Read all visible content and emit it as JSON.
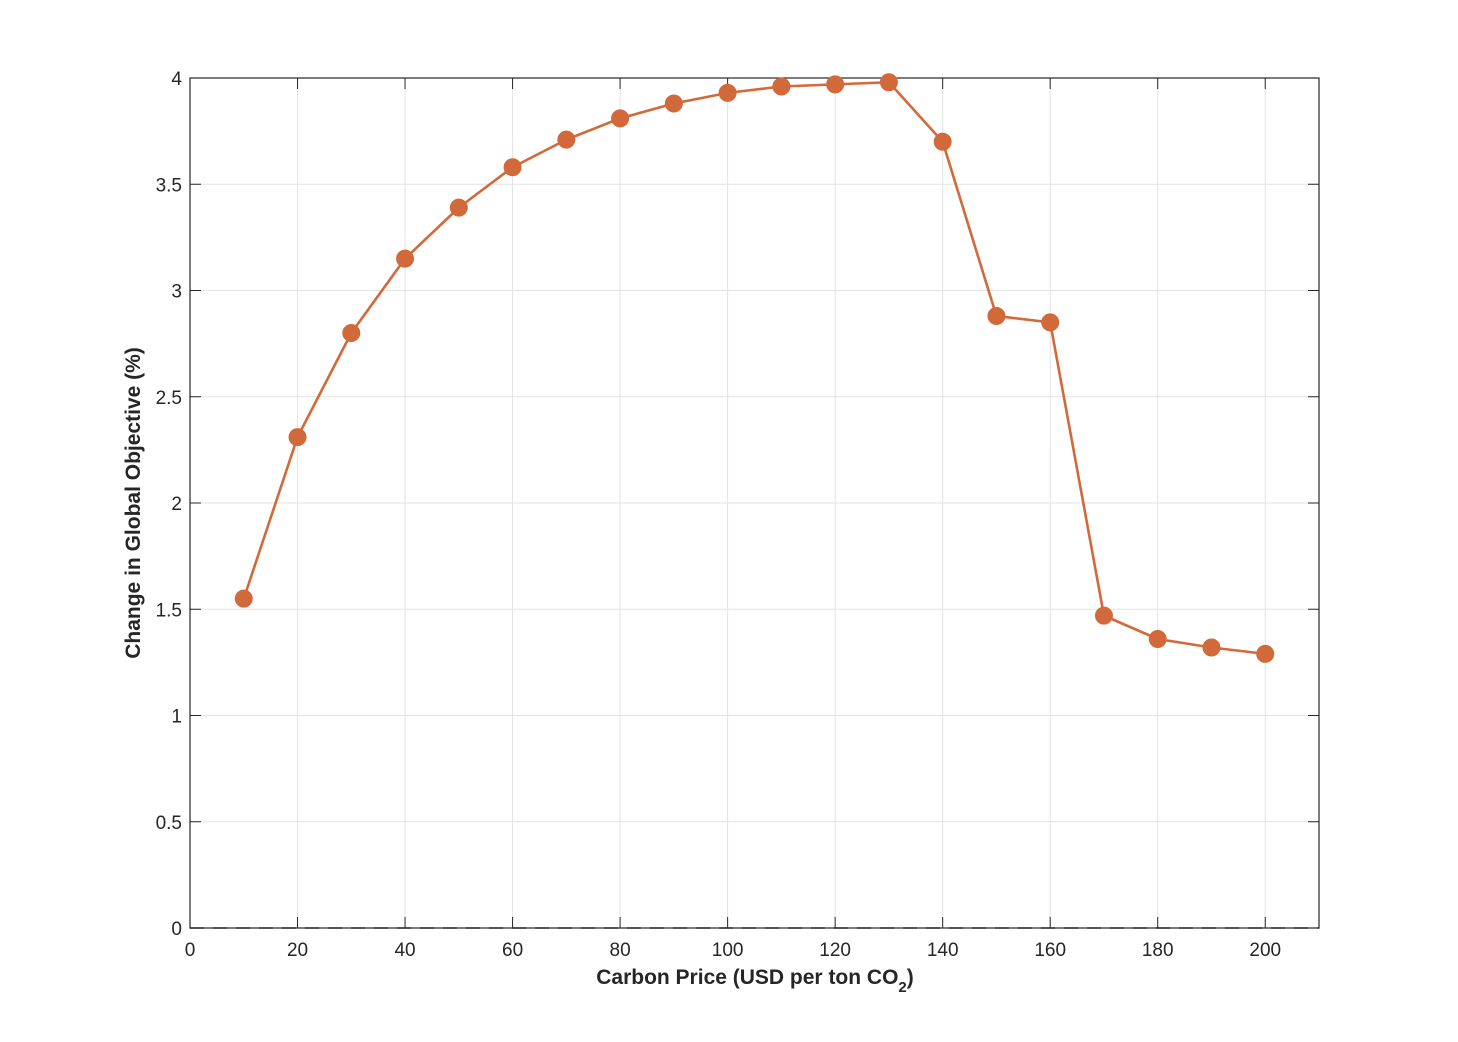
{
  "chart_data": {
    "type": "line",
    "title": "",
    "xlabel": "Carbon Price (USD per ton CO",
    "xlabel_subscript": "2",
    "xlabel_suffix": ")",
    "ylabel": "Change in Global Objective (%)",
    "xlim": [
      0,
      210
    ],
    "ylim": [
      0,
      4
    ],
    "xticks": [
      0,
      20,
      40,
      60,
      80,
      100,
      120,
      140,
      160,
      180,
      200
    ],
    "yticks": [
      0,
      0.5,
      1,
      1.5,
      2,
      2.5,
      3,
      3.5,
      4
    ],
    "xtick_labels": [
      "0",
      "20",
      "40",
      "60",
      "80",
      "100",
      "120",
      "140",
      "160",
      "180",
      "200"
    ],
    "ytick_labels": [
      "0",
      "0.5",
      "1",
      "1.5",
      "2",
      "2.5",
      "3",
      "3.5",
      "4"
    ],
    "grid": true,
    "zero_line": {
      "style": "dashed",
      "color": "#333333"
    },
    "series": [
      {
        "color": "#D2693A",
        "marker": "circle",
        "x": [
          10,
          20,
          30,
          40,
          50,
          60,
          70,
          80,
          90,
          100,
          110,
          120,
          130,
          140,
          150,
          160,
          170,
          180,
          190,
          200
        ],
        "y": [
          1.55,
          2.31,
          2.8,
          3.15,
          3.39,
          3.58,
          3.71,
          3.81,
          3.88,
          3.93,
          3.96,
          3.97,
          3.98,
          3.7,
          2.88,
          2.85,
          1.47,
          1.36,
          1.32,
          1.29
        ]
      }
    ]
  }
}
